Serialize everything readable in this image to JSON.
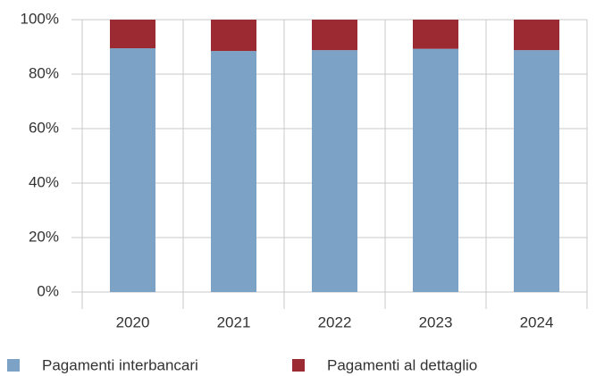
{
  "chart_data": {
    "type": "stacked_bar",
    "categories": [
      "2020",
      "2021",
      "2022",
      "2023",
      "2024"
    ],
    "series": [
      {
        "name": "Pagamenti interbancari",
        "color": "#7ca3c6",
        "values": [
          89.5,
          88.5,
          88.8,
          89.3,
          88.8
        ]
      },
      {
        "name": "Pagamenti al dettaglio",
        "color": "#9b2a33",
        "values": [
          10.5,
          11.5,
          11.2,
          10.7,
          11.2
        ]
      }
    ],
    "ylim": [
      0,
      100
    ],
    "yticks": [
      {
        "value": 0,
        "label": "0%"
      },
      {
        "value": 20,
        "label": "20%"
      },
      {
        "value": 40,
        "label": "40%"
      },
      {
        "value": 60,
        "label": "60%"
      },
      {
        "value": 80,
        "label": "80%"
      },
      {
        "value": 100,
        "label": "100%"
      }
    ],
    "grid": true,
    "legend": "bottom"
  }
}
